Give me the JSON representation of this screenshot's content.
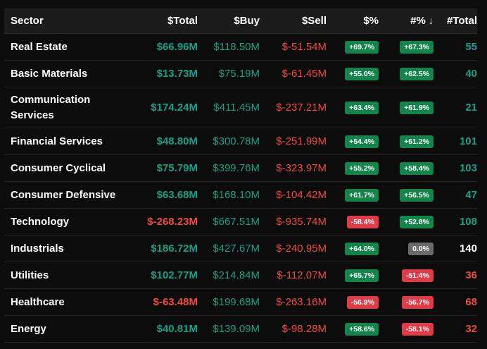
{
  "header": {
    "sector": "Sector",
    "total": "$Total",
    "buy": "$Buy",
    "sell": "$Sell",
    "pct": "$%",
    "npct": "#%",
    "npct_arrow": "↓",
    "ntotal": "#Total"
  },
  "rows": [
    {
      "sector": "Real Estate",
      "total": "$66.96M",
      "total_color": "green",
      "buy": "$118.50M",
      "sell": "$-51.54M",
      "pct": "+69.7%",
      "pct_type": "pos",
      "npct": "+67.3%",
      "npct_type": "pos",
      "ntotal": "55",
      "ntotal_color": "green",
      "tall": false
    },
    {
      "sector": "Basic Materials",
      "total": "$13.73M",
      "total_color": "green",
      "buy": "$75.19M",
      "sell": "$-61.45M",
      "pct": "+55.0%",
      "pct_type": "pos",
      "npct": "+62.5%",
      "npct_type": "pos",
      "ntotal": "40",
      "ntotal_color": "green",
      "tall": false
    },
    {
      "sector": "Communication Services",
      "total": "$174.24M",
      "total_color": "green",
      "buy": "$411.45M",
      "sell": "$-237.21M",
      "pct": "+63.4%",
      "pct_type": "pos",
      "npct": "+61.9%",
      "npct_type": "pos",
      "ntotal": "21",
      "ntotal_color": "green",
      "tall": true
    },
    {
      "sector": "Financial Services",
      "total": "$48.80M",
      "total_color": "green",
      "buy": "$300.78M",
      "sell": "$-251.99M",
      "pct": "+54.4%",
      "pct_type": "pos",
      "npct": "+61.2%",
      "npct_type": "pos",
      "ntotal": "101",
      "ntotal_color": "green",
      "tall": false
    },
    {
      "sector": "Consumer Cyclical",
      "total": "$75.79M",
      "total_color": "green",
      "buy": "$399.76M",
      "sell": "$-323.97M",
      "pct": "+55.2%",
      "pct_type": "pos",
      "npct": "+58.4%",
      "npct_type": "pos",
      "ntotal": "103",
      "ntotal_color": "green",
      "tall": false
    },
    {
      "sector": "Consumer Defensive",
      "total": "$63.68M",
      "total_color": "green",
      "buy": "$168.10M",
      "sell": "$-104.42M",
      "pct": "+61.7%",
      "pct_type": "pos",
      "npct": "+56.5%",
      "npct_type": "pos",
      "ntotal": "47",
      "ntotal_color": "green",
      "tall": false
    },
    {
      "sector": "Technology",
      "total": "$-268.23M",
      "total_color": "red",
      "buy": "$667.51M",
      "sell": "$-935.74M",
      "pct": "-58.4%",
      "pct_type": "neg",
      "npct": "+52.8%",
      "npct_type": "pos",
      "ntotal": "108",
      "ntotal_color": "green",
      "tall": false
    },
    {
      "sector": "Industrials",
      "total": "$186.72M",
      "total_color": "green",
      "buy": "$427.67M",
      "sell": "$-240.95M",
      "pct": "+64.0%",
      "pct_type": "pos",
      "npct": "0.0%",
      "npct_type": "zero",
      "ntotal": "140",
      "ntotal_color": "white",
      "tall": false
    },
    {
      "sector": "Utilities",
      "total": "$102.77M",
      "total_color": "green",
      "buy": "$214.84M",
      "sell": "$-112.07M",
      "pct": "+65.7%",
      "pct_type": "pos",
      "npct": "-51.4%",
      "npct_type": "neg",
      "ntotal": "36",
      "ntotal_color": "red",
      "tall": false
    },
    {
      "sector": "Healthcare",
      "total": "$-63.48M",
      "total_color": "red",
      "buy": "$199.68M",
      "sell": "$-263.16M",
      "pct": "-56.9%",
      "pct_type": "neg",
      "npct": "-56.7%",
      "npct_type": "neg",
      "ntotal": "68",
      "ntotal_color": "red",
      "tall": false
    },
    {
      "sector": "Energy",
      "total": "$40.81M",
      "total_color": "green",
      "buy": "$139.09M",
      "sell": "$-98.28M",
      "pct": "+58.6%",
      "pct_type": "pos",
      "npct": "-58.1%",
      "npct_type": "neg",
      "ntotal": "32",
      "ntotal_color": "red",
      "tall": false
    }
  ],
  "colors": {
    "green": "#16a085",
    "red": "#f04a3c",
    "badge_pos": "#13844a",
    "badge_neg": "#e23b48",
    "badge_zero": "#6a6a6a",
    "header_bg": "#1c1c1c",
    "page_bg": "#0c0c0c"
  }
}
